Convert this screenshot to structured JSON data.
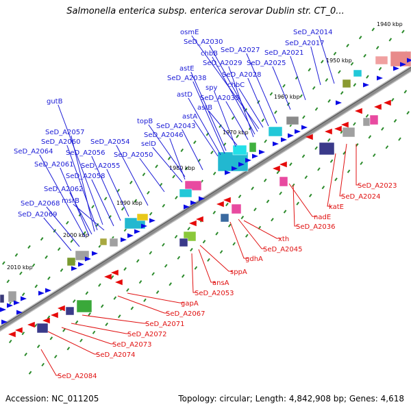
{
  "title": "Salmonella enterica subsp. enterica serovar Dublin str. CT_0...",
  "footer": {
    "accession": "Accession: NC_011205",
    "info": "Topology: circular; Length: 4,842,908 bp; Genes: 4,618"
  },
  "colors": {
    "forward_label": "#1a1ad6",
    "reverse_label": "#e01010",
    "forward_gene": "#0a0ae6",
    "reverse_gene": "#e60a0a",
    "backbone": "#8c8c8c"
  },
  "kbp_ticks": [
    "1940 kbp",
    "1950 kbp",
    "1960 kbp",
    "1970 kbp",
    "1980 kbp",
    "1990 kbp",
    "2000 kbp",
    "2010 kbp"
  ],
  "forward_labels": [
    "osmE",
    "SeD_A2014",
    "SeD_A2030",
    "SeD_A2017",
    "chbB",
    "SeD_A2027",
    "SeD_A2021",
    "SeD_A2029",
    "SeD_A2025",
    "astE",
    "SeD_A2028",
    "SeD_A2038",
    "chbC",
    "spy",
    "astD",
    "SeD_A2035",
    "astB",
    "astA",
    "topB",
    "SeD_A2043",
    "gutB",
    "SeD_A2046",
    "SeD_A2057",
    "selD",
    "SeD_A2060",
    "SeD_A2054",
    "SeD_A2064",
    "SeD_A2056",
    "SeD_A2050",
    "SeD_A2061",
    "SeD_A2055",
    "SeD_A2058",
    "SeD_A2062",
    "msrB",
    "SeD_A2068",
    "SeD_A2069"
  ],
  "reverse_labels": [
    "SeD_A2023",
    "SeD_A2024",
    "katE",
    "nadE",
    "SeD_A2036",
    "xth",
    "SeD_A2045",
    "gdhA",
    "sppA",
    "ansA",
    "SeD_A2053",
    "gapA",
    "SeD_A2067",
    "SeD_A2071",
    "SeD_A2072",
    "SeD_A2073",
    "SeD_A2074",
    "SeD_A2084"
  ]
}
